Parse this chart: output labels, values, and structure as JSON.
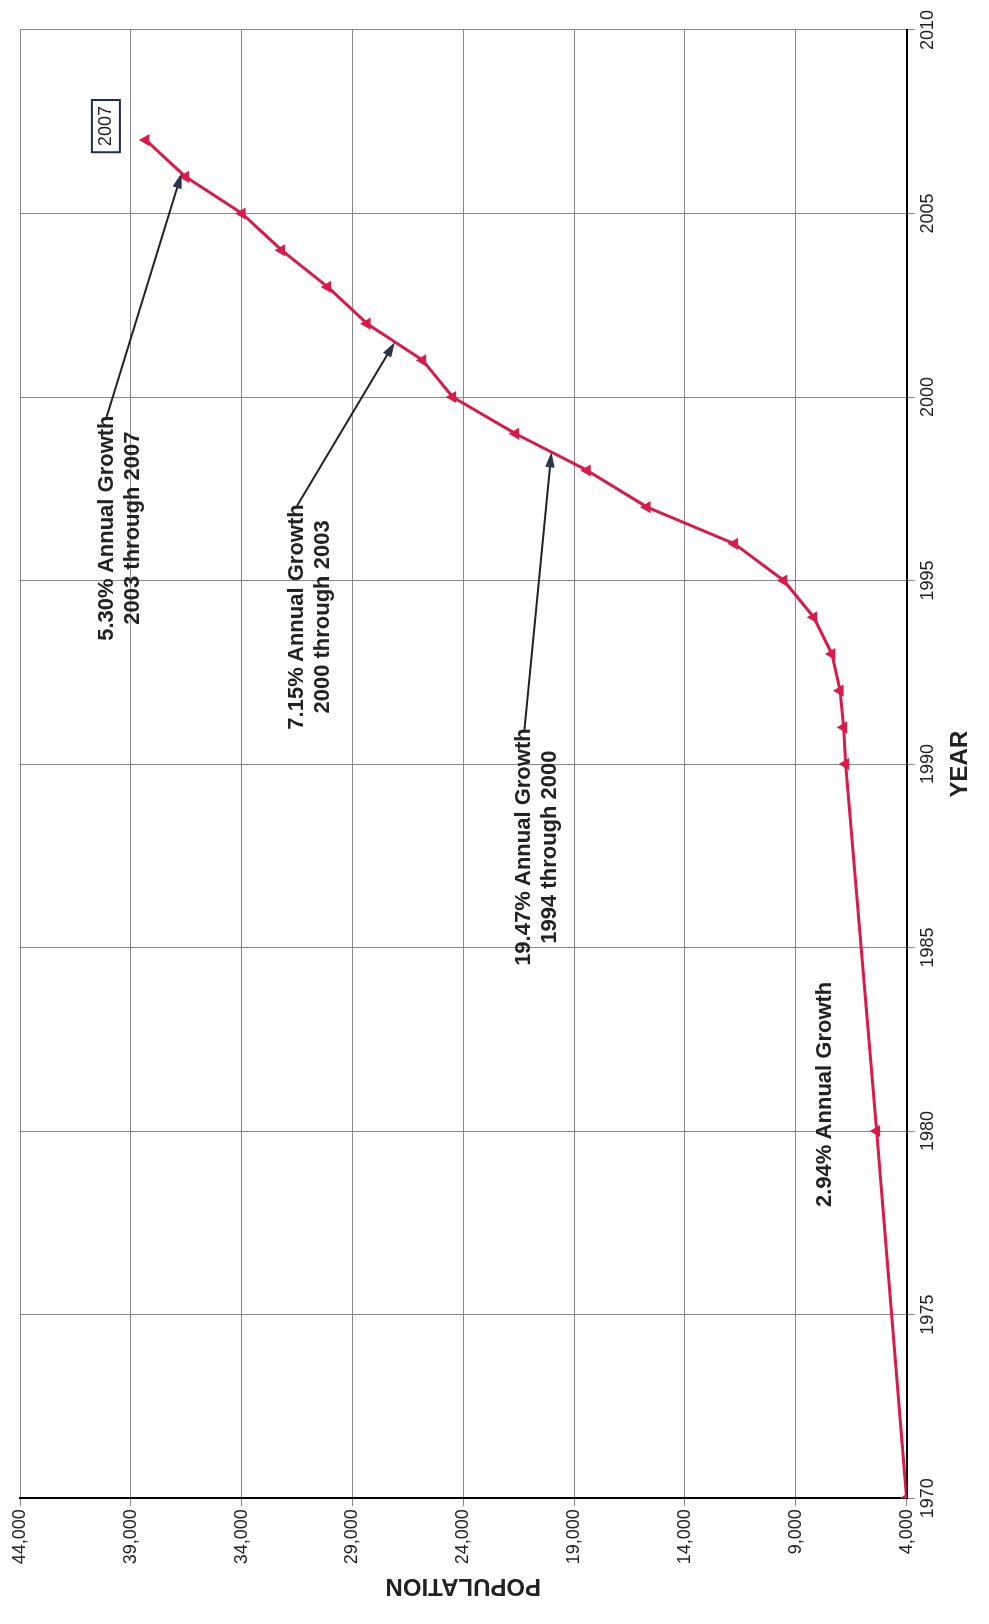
{
  "chart_data": {
    "type": "line",
    "xlabel": "POPULATION",
    "ylabel": "YEAR",
    "x": [
      4000,
      5350,
      6750,
      6840,
      7000,
      7370,
      8190,
      9540,
      11760,
      15710,
      18410,
      21640,
      24480,
      25830,
      28340,
      30120,
      32200,
      33980,
      36530,
      38320
    ],
    "series": [
      {
        "color": "#d81b4a",
        "values": [
          1970,
          1980,
          1990,
          1991,
          1992,
          1993,
          1994,
          1995,
          1996,
          1997,
          1998,
          1999,
          2000,
          2001,
          2002,
          2003,
          2004,
          2005,
          2006,
          2007
        ]
      }
    ],
    "ylim": [
      1970,
      2010
    ],
    "yticks": [
      1970,
      1975,
      1980,
      1985,
      1990,
      1995,
      2000,
      2005,
      2010
    ],
    "xlim": [
      44000,
      4000
    ],
    "xticks": [
      {
        "value": 44000,
        "label": "44,000"
      },
      {
        "value": 39000,
        "label": "39,000"
      },
      {
        "value": 34000,
        "label": "34,000"
      },
      {
        "value": 29000,
        "label": "29,000"
      },
      {
        "value": 24000,
        "label": "24,000"
      },
      {
        "value": 19000,
        "label": "19,000"
      },
      {
        "value": 14000,
        "label": "14,000"
      },
      {
        "value": 9000,
        "label": "9,000"
      },
      {
        "value": 4000,
        "label": "4,000"
      }
    ],
    "annotations": [
      "5.30% Annual Growth\n2003 through 2007",
      "7.15% Annual Growth\n2000 through 2003",
      "19.47% Annual Growth\n1994 through 2000",
      {
        "text": "2.94% Annual Growth",
        "x": 5500,
        "y": 1981
      },
      {
        "text": "2007",
        "x": 38320,
        "y": 2007
      }
    ],
    "grid": true,
    "legend": false,
    "marker": "triangle",
    "line_style": "solid"
  }
}
